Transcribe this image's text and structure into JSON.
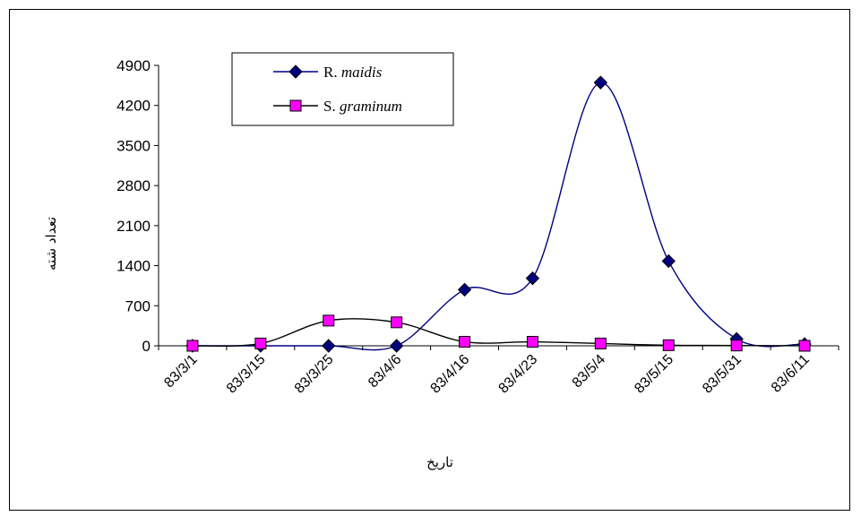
{
  "chart_data": {
    "type": "line",
    "title": "",
    "xlabel": "تاریخ",
    "ylabel": "تعداد شته",
    "ylim": [
      0,
      4900
    ],
    "yticks": [
      0,
      700,
      1400,
      2100,
      2800,
      3500,
      4200,
      4900
    ],
    "categories": [
      "83/3/1",
      "83/3/15",
      "83/3/25",
      "83/4/6",
      "83/4/16",
      "83/4/23",
      "83/5/4",
      "83/5/15",
      "83/5/31",
      "83/6/11"
    ],
    "series": [
      {
        "name": "R. maidis",
        "name_prefix": "R.",
        "name_italic": "maidis",
        "color": "#000080",
        "marker": "diamond",
        "marker_color": "#000080",
        "values": [
          0,
          0,
          0,
          0,
          980,
          1180,
          4600,
          1480,
          120,
          30
        ]
      },
      {
        "name": "S. graminum",
        "name_prefix": "S.",
        "name_italic": "graminum",
        "color": "#000000",
        "marker": "square",
        "marker_color": "#ff00ff",
        "values": [
          0,
          40,
          440,
          410,
          70,
          70,
          40,
          10,
          5,
          0
        ]
      }
    ],
    "legend_position": "top-left",
    "grid": false
  }
}
